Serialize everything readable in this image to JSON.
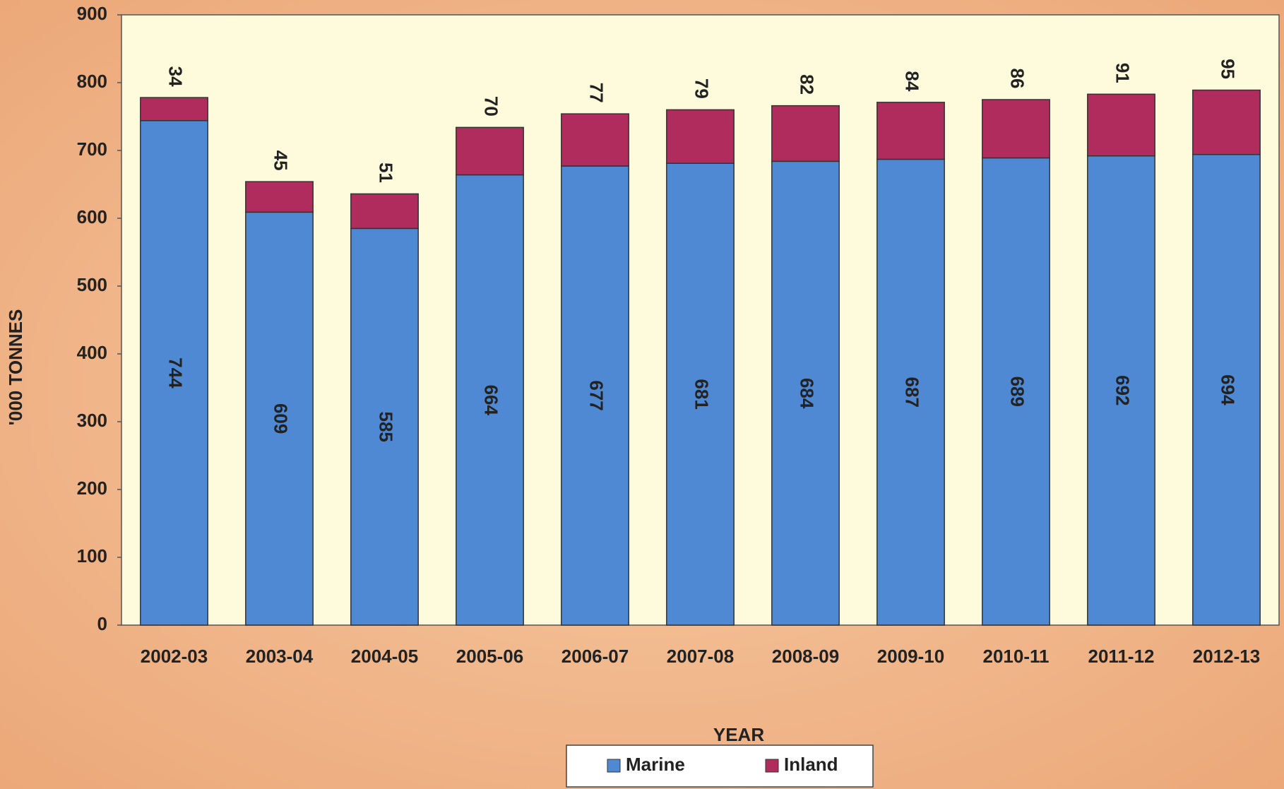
{
  "chart_data": {
    "type": "stacked_bar",
    "x_label": "YEAR",
    "y_label": "'000 TONNES",
    "categories": [
      "2002-03",
      "2003-04",
      "2004-05",
      "2005-06",
      "2006-07",
      "2007-08",
      "2008-09",
      "2009-10",
      "2010-11",
      "2011-12",
      "2012-13"
    ],
    "series": [
      {
        "name": "Marine",
        "color": "#5089d3",
        "values": [
          744,
          609,
          585,
          664,
          677,
          681,
          684,
          687,
          689,
          692,
          694
        ]
      },
      {
        "name": "Inland",
        "color": "#b02c5c",
        "values": [
          34,
          45,
          51,
          70,
          77,
          79,
          82,
          84,
          86,
          91,
          95
        ]
      }
    ],
    "ylim": [
      0,
      900
    ],
    "yticks": [
      0,
      100,
      200,
      300,
      400,
      500,
      600,
      700,
      800,
      900
    ],
    "legend": "bottom"
  }
}
